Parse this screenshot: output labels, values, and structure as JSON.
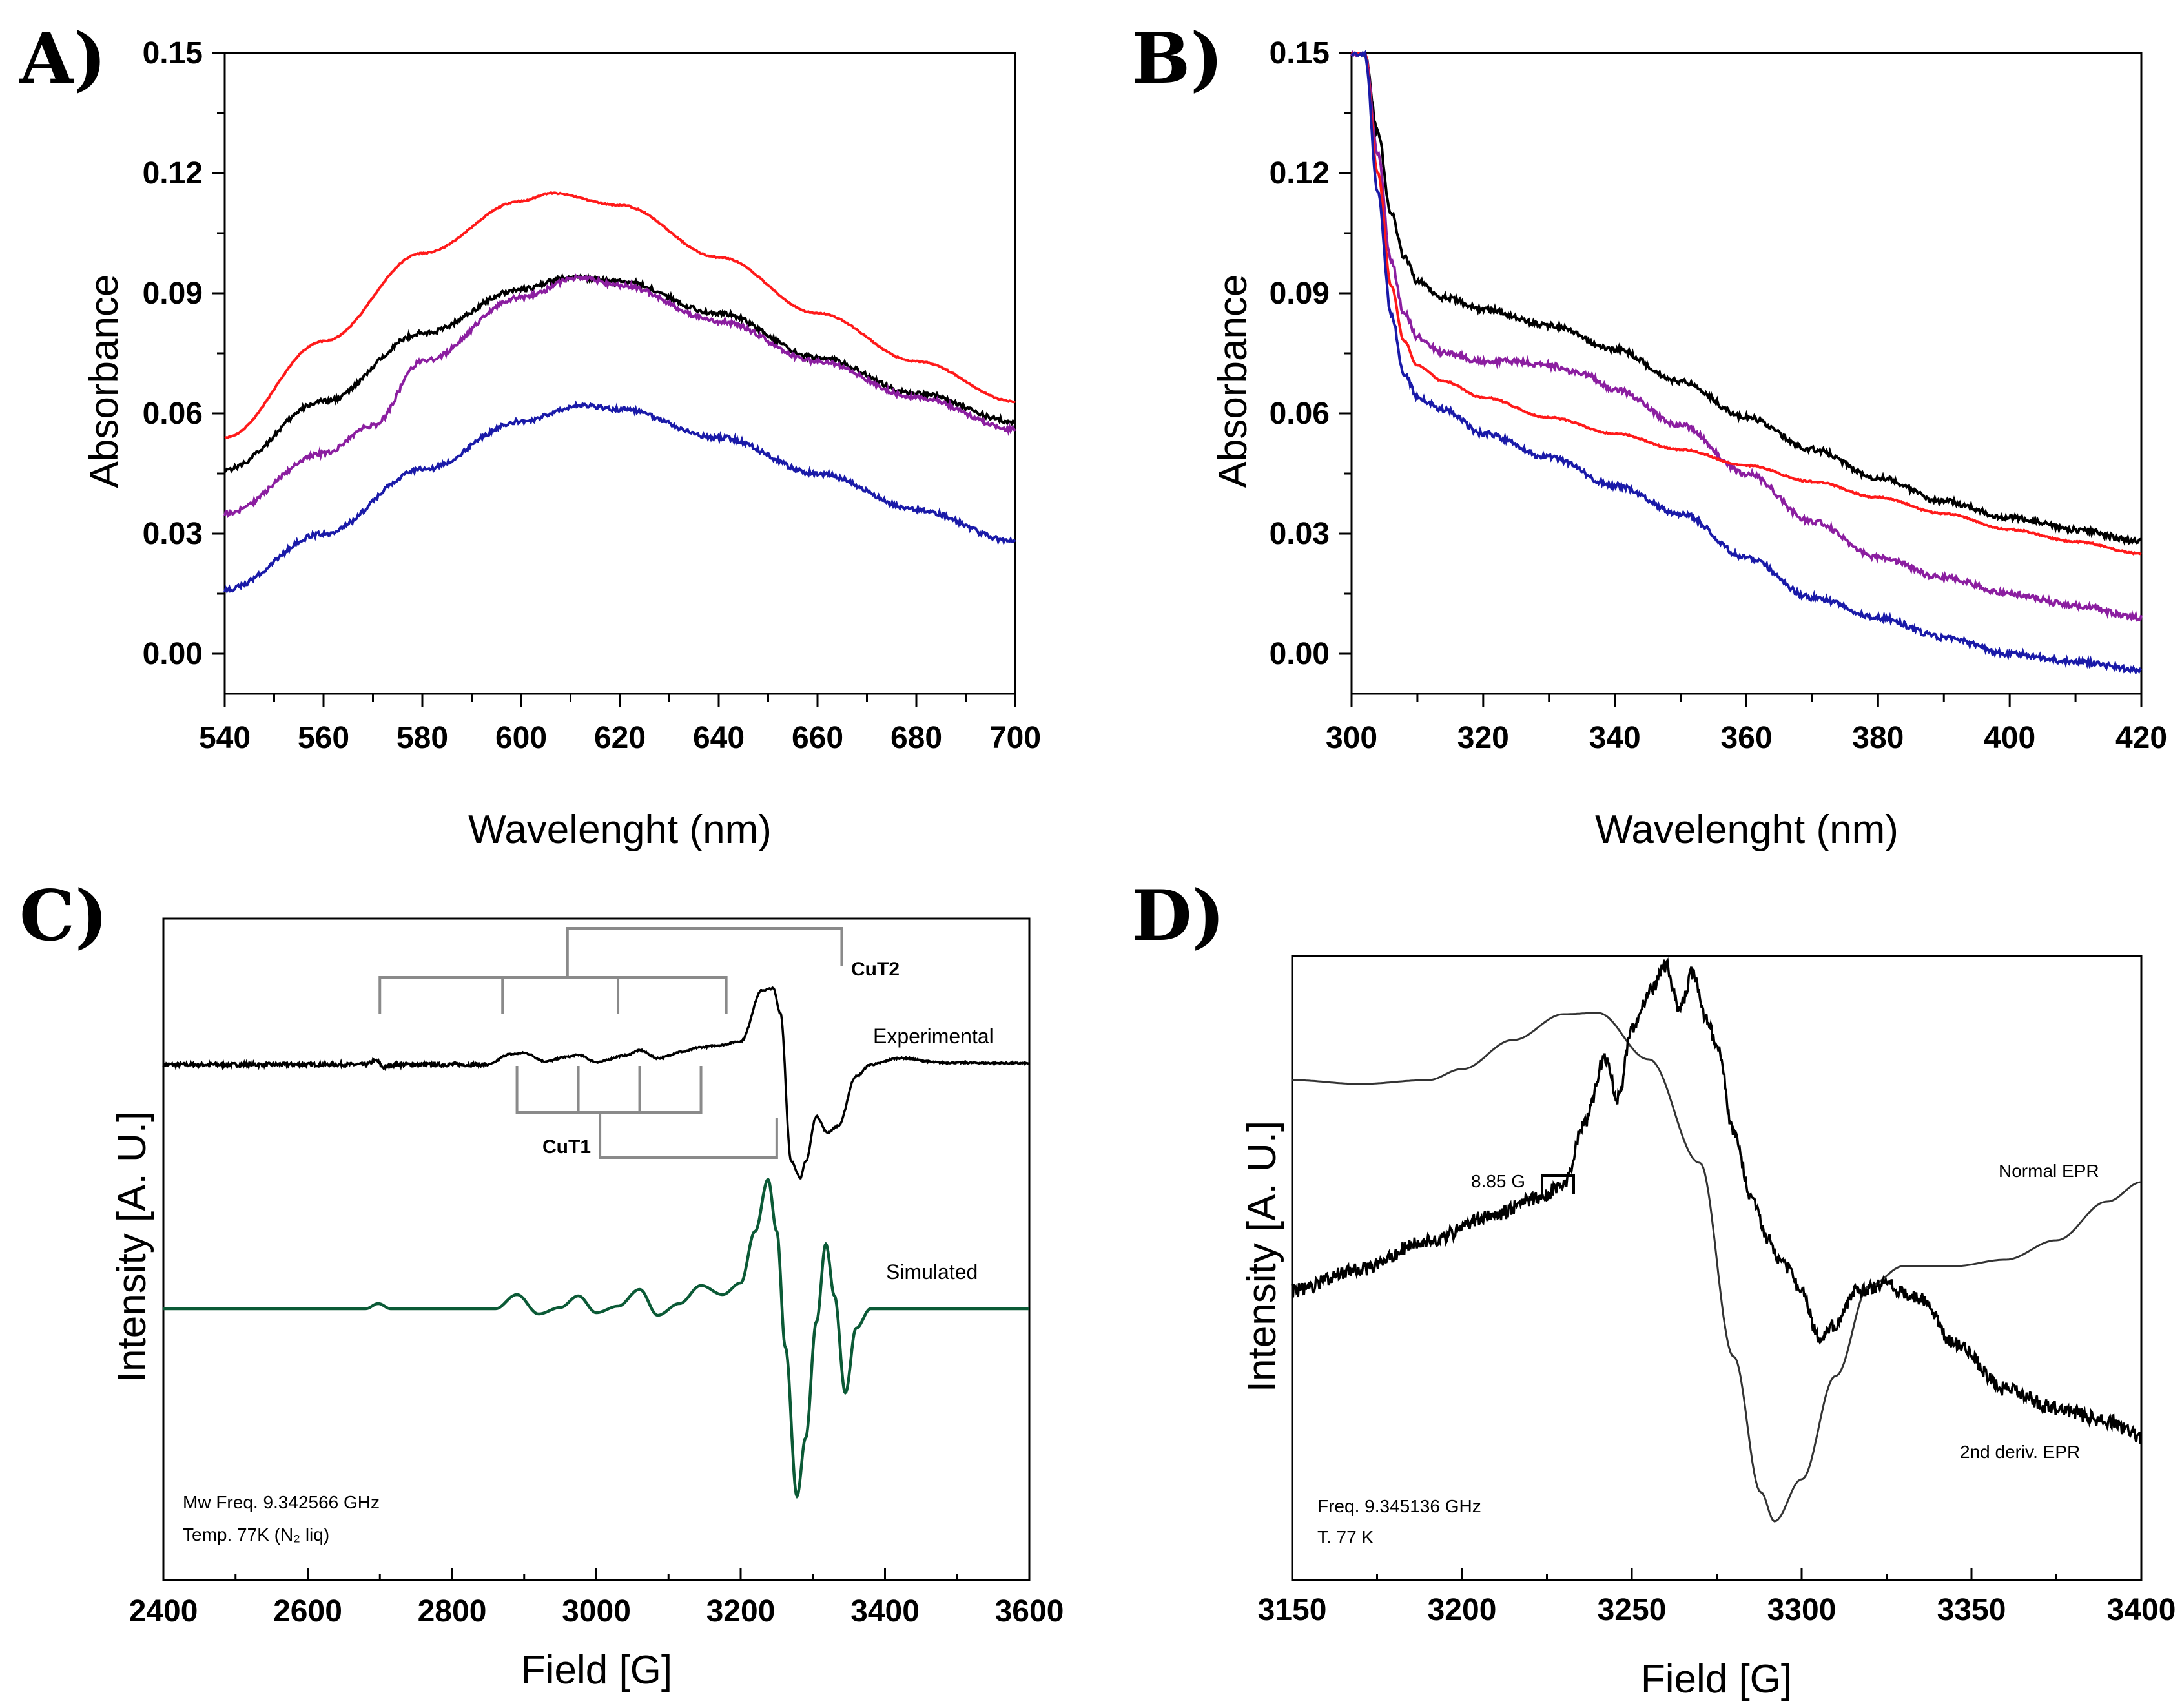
{
  "chart_data": [
    {
      "panel": "A)",
      "type": "line",
      "xlabel": "Wavelenght (nm)",
      "ylabel": "Absorbance",
      "xlim": [
        540,
        700
      ],
      "ylim": [
        -0.01,
        0.15
      ],
      "xticks": [
        540,
        560,
        580,
        600,
        620,
        640,
        660,
        680,
        700
      ],
      "yticks": [
        "0.15",
        "0.12",
        "0.09",
        "0.06",
        "0.03",
        "0.00"
      ],
      "yticks_values": [
        0.15,
        0.12,
        0.09,
        0.06,
        0.03,
        0.0
      ],
      "series": [
        {
          "name": "red",
          "color": "#ff1a1a",
          "x": [
            540,
            560,
            580,
            600,
            606,
            620,
            640,
            660,
            680,
            700
          ],
          "y": [
            0.054,
            0.078,
            0.1,
            0.113,
            0.115,
            0.112,
            0.099,
            0.085,
            0.073,
            0.063
          ]
        },
        {
          "name": "black",
          "color": "#000000",
          "x": [
            540,
            560,
            580,
            600,
            610,
            620,
            640,
            660,
            680,
            700
          ],
          "y": [
            0.046,
            0.063,
            0.08,
            0.091,
            0.094,
            0.093,
            0.085,
            0.074,
            0.065,
            0.058
          ]
        },
        {
          "name": "purple",
          "color": "#8b1ea0",
          "x": [
            540,
            560,
            570,
            580,
            600,
            612,
            620,
            640,
            660,
            680,
            700
          ],
          "y": [
            0.035,
            0.05,
            0.057,
            0.073,
            0.089,
            0.094,
            0.092,
            0.083,
            0.073,
            0.064,
            0.056
          ]
        },
        {
          "name": "blue",
          "color": "#1a1aa8",
          "x": [
            540,
            560,
            580,
            600,
            612,
            620,
            640,
            660,
            680,
            700
          ],
          "y": [
            0.016,
            0.03,
            0.046,
            0.058,
            0.062,
            0.061,
            0.054,
            0.045,
            0.036,
            0.028
          ]
        }
      ]
    },
    {
      "panel": "B)",
      "type": "line",
      "xlabel": "Wavelenght (nm)",
      "ylabel": "Absorbance",
      "xlim": [
        300,
        420
      ],
      "ylim": [
        -0.01,
        0.15
      ],
      "xticks": [
        300,
        320,
        340,
        360,
        380,
        400,
        420
      ],
      "yticks": [
        "0.15",
        "0.12",
        "0.09",
        "0.06",
        "0.03",
        "0.00"
      ],
      "yticks_values": [
        0.15,
        0.12,
        0.09,
        0.06,
        0.03,
        0.0
      ],
      "series": [
        {
          "name": "black",
          "color": "#000000",
          "x": [
            300,
            302,
            304,
            306,
            308,
            310,
            314,
            320,
            330,
            340,
            350,
            360,
            370,
            380,
            390,
            400,
            410,
            420
          ],
          "y": [
            0.15,
            0.15,
            0.13,
            0.11,
            0.099,
            0.093,
            0.089,
            0.086,
            0.082,
            0.076,
            0.068,
            0.059,
            0.051,
            0.044,
            0.038,
            0.034,
            0.031,
            0.028
          ]
        },
        {
          "name": "purple",
          "color": "#8b1ea0",
          "x": [
            300,
            302,
            304,
            306,
            308,
            310,
            314,
            320,
            325,
            330,
            335,
            340,
            350,
            360,
            370,
            380,
            390,
            400,
            410,
            420
          ],
          "y": [
            0.15,
            0.15,
            0.125,
            0.098,
            0.085,
            0.079,
            0.075,
            0.073,
            0.073,
            0.072,
            0.07,
            0.066,
            0.057,
            0.045,
            0.033,
            0.024,
            0.019,
            0.015,
            0.012,
            0.009
          ]
        },
        {
          "name": "red",
          "color": "#ff1a1a",
          "x": [
            300,
            302,
            304,
            306,
            308,
            310,
            314,
            320,
            330,
            340,
            350,
            360,
            370,
            380,
            390,
            400,
            410,
            420
          ],
          "y": [
            0.15,
            0.15,
            0.12,
            0.092,
            0.078,
            0.072,
            0.068,
            0.064,
            0.059,
            0.055,
            0.051,
            0.047,
            0.043,
            0.039,
            0.035,
            0.031,
            0.028,
            0.025
          ]
        },
        {
          "name": "blue",
          "color": "#1a1aa8",
          "x": [
            300,
            302,
            304,
            306,
            308,
            310,
            314,
            320,
            330,
            340,
            350,
            360,
            370,
            380,
            390,
            400,
            410,
            420
          ],
          "y": [
            0.15,
            0.15,
            0.115,
            0.085,
            0.07,
            0.064,
            0.061,
            0.055,
            0.049,
            0.042,
            0.035,
            0.024,
            0.014,
            0.009,
            0.004,
            0.0,
            -0.002,
            -0.004
          ]
        }
      ]
    },
    {
      "panel": "C)",
      "type": "line",
      "xlabel": "Field [G]",
      "ylabel": "Intensity [A. U.]",
      "xlim": [
        2400,
        3600
      ],
      "xticks": [
        2400,
        2600,
        2800,
        3000,
        3200,
        3400,
        3600
      ],
      "series": [
        {
          "name": "Experimental",
          "color": "#000000",
          "baseline": 0.0,
          "scale": 1.0
        },
        {
          "name": "Simulated",
          "color": "#0b5a36",
          "baseline": -1.0,
          "scale": 1.0
        }
      ],
      "annotations": {
        "cut2_label": "CuT2",
        "cut1_label": "CuT1",
        "cut2_hyperfine_fields": [
          2700,
          2870,
          3030,
          3180
        ],
        "cut2_center_field": 2960,
        "cut2_end_field": 3340,
        "cut1_hyperfine_fields": [
          2890,
          2975,
          3060,
          3145
        ],
        "cut1_center_field": 3005,
        "cut1_end_field": 3250,
        "mw_freq": "Mw Freq.    9.342566 GHz",
        "temp": "Temp.  77K (N₂ liq)"
      }
    },
    {
      "panel": "D)",
      "type": "line",
      "xlabel": "Field [G]",
      "ylabel": "Intensity [A. U.]",
      "xlim": [
        3150,
        3400
      ],
      "xticks": [
        3150,
        3200,
        3250,
        3300,
        3350,
        3400
      ],
      "series": [
        {
          "name": "Normal EPR",
          "color": "#333333"
        },
        {
          "name": "2nd deriv. EPR",
          "color": "#000000"
        }
      ],
      "annotations": {
        "splitting_label": "8.85 G",
        "freq": "Freq. 9.345136 GHz",
        "temp": "T. 77 K"
      }
    }
  ]
}
